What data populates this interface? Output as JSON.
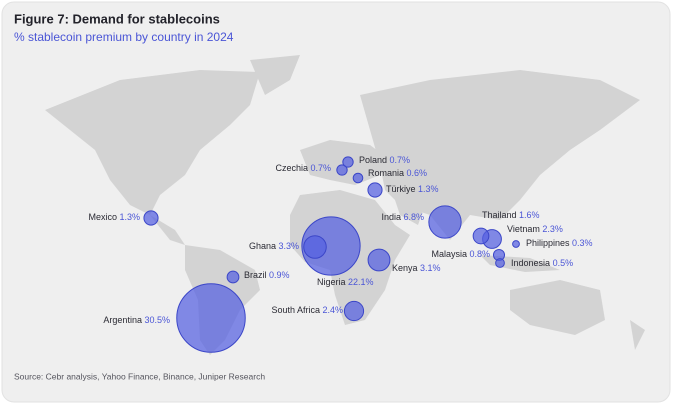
{
  "chart_data": {
    "type": "bubble_map",
    "title": "Figure 7: Demand for stablecoins",
    "subtitle": "% stablecoin premium by country in 2024",
    "source": "Source: Cebr analysis, Yahoo Finance, Binance, Juniper Research",
    "color": "#5560e0",
    "categories": [
      "Mexico",
      "Brazil",
      "Argentina",
      "Czechia",
      "Poland",
      "Romania",
      "Türkiye",
      "Ghana",
      "Nigeria",
      "Kenya",
      "South Africa",
      "India",
      "Thailand",
      "Vietnam",
      "Philippines",
      "Malaysia",
      "Indonesia"
    ],
    "values": [
      1.3,
      0.9,
      30.5,
      0.7,
      0.7,
      0.6,
      1.3,
      3.3,
      22.1,
      3.1,
      2.4,
      6.8,
      1.6,
      2.3,
      0.3,
      0.8,
      0.5
    ],
    "value_labels": [
      "1.3%",
      "0.9%",
      "30.5%",
      "0.7%",
      "0.7%",
      "0.6%",
      "1.3%",
      "3.3%",
      "22.1%",
      "3.1%",
      "2.4%",
      "6.8%",
      "1.6%",
      "2.3%",
      "0.3%",
      "0.8%",
      "0.5%"
    ]
  }
}
